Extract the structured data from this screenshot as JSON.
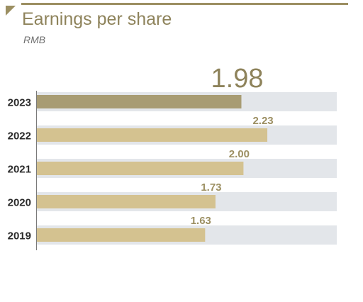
{
  "header": {
    "title": "Earnings per share",
    "subtitle": "RMB"
  },
  "chart_data": {
    "type": "bar",
    "orientation": "horizontal",
    "title": "Earnings per share",
    "subtitle": "RMB",
    "categories": [
      "2023",
      "2022",
      "2021",
      "2020",
      "2019"
    ],
    "values": [
      1.98,
      2.23,
      2.0,
      1.73,
      1.63
    ],
    "value_labels": [
      "1.98",
      "2.23",
      "2.00",
      "1.73",
      "1.63"
    ],
    "highlight": "2023",
    "xlim": [
      0,
      2.9
    ],
    "grid": false,
    "legend": "none",
    "colors": {
      "highlight_bar": "#a89c73",
      "bar": "#d4c290",
      "track": "#e3e6ea",
      "highlight_label": "#8e835b",
      "label": "#9c8f62",
      "category_label": "#2b2b2b",
      "axis": "#7a7a7a"
    }
  }
}
